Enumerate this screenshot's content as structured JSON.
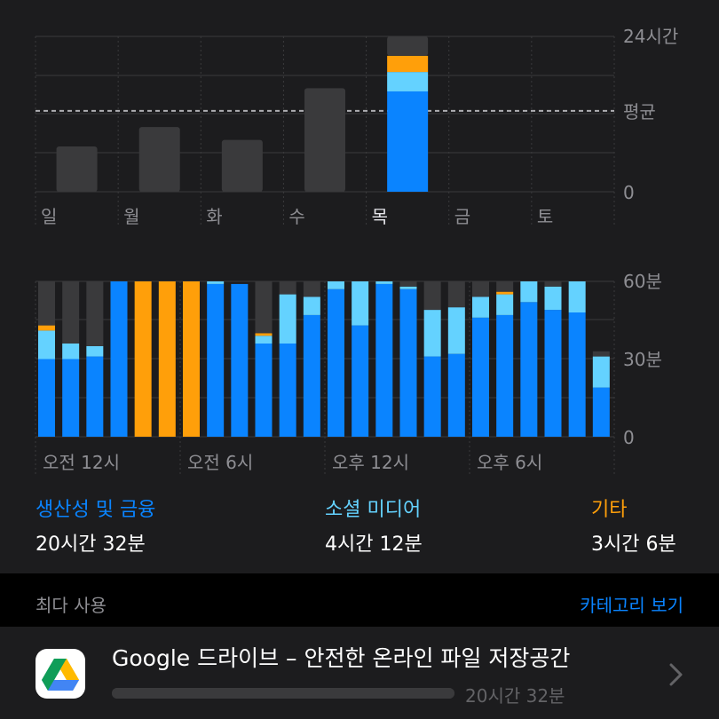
{
  "colors": {
    "productivity": "#0a84ff",
    "social": "#64d2ff",
    "other": "#ff9f0a",
    "uncategorized": "#3a3a3c",
    "link": "#0a84ff"
  },
  "weekly_chart": {
    "y_ticks": [
      "24시간",
      "평균",
      "0"
    ],
    "days": [
      "일",
      "월",
      "화",
      "수",
      "목",
      "금",
      "토"
    ],
    "today_index": 4,
    "max_hours": 24,
    "average_hours": 12.5,
    "totals_hours": [
      7,
      10,
      8,
      16,
      24,
      null,
      null
    ],
    "today_breakdown": {
      "productivity": 15.5,
      "social": 3,
      "other": 2.5,
      "uncategorized": 3
    }
  },
  "hourly_chart": {
    "y_ticks": [
      "60분",
      "30분",
      "0"
    ],
    "x_labels": [
      "오전 12시",
      "오전 6시",
      "오후 12시",
      "오후 6시"
    ],
    "max_minutes": 60,
    "hours": [
      {
        "p": 30,
        "s": 11,
        "o": 2,
        "u": 17
      },
      {
        "p": 30,
        "s": 6,
        "o": 0,
        "u": 24
      },
      {
        "p": 31,
        "s": 4,
        "o": 0,
        "u": 25
      },
      {
        "p": 60,
        "s": 0,
        "o": 0,
        "u": 0
      },
      {
        "p": 0,
        "s": 0,
        "o": 60,
        "u": 0
      },
      {
        "p": 0,
        "s": 0,
        "o": 60,
        "u": 0
      },
      {
        "p": 0,
        "s": 0,
        "o": 60,
        "u": 0
      },
      {
        "p": 59,
        "s": 1,
        "o": 0,
        "u": 0
      },
      {
        "p": 59,
        "s": 0,
        "o": 0,
        "u": 0
      },
      {
        "p": 36,
        "s": 3,
        "o": 1,
        "u": 20
      },
      {
        "p": 36,
        "s": 19,
        "o": 0,
        "u": 5
      },
      {
        "p": 47,
        "s": 7,
        "o": 0,
        "u": 6
      },
      {
        "p": 57,
        "s": 3,
        "o": 0,
        "u": 0
      },
      {
        "p": 43,
        "s": 17,
        "o": 0,
        "u": 0
      },
      {
        "p": 59,
        "s": 1,
        "o": 0,
        "u": 0
      },
      {
        "p": 57,
        "s": 1,
        "o": 0,
        "u": 2
      },
      {
        "p": 31,
        "s": 18,
        "o": 0,
        "u": 11
      },
      {
        "p": 32,
        "s": 18,
        "o": 0,
        "u": 10
      },
      {
        "p": 46,
        "s": 8,
        "o": 0,
        "u": 6
      },
      {
        "p": 47,
        "s": 8,
        "o": 1,
        "u": 4
      },
      {
        "p": 52,
        "s": 8,
        "o": 0,
        "u": 0
      },
      {
        "p": 49,
        "s": 9,
        "o": 0,
        "u": 2
      },
      {
        "p": 48,
        "s": 12,
        "o": 0,
        "u": 0
      },
      {
        "p": 19,
        "s": 12,
        "o": 0,
        "u": 2
      }
    ]
  },
  "categories": [
    {
      "name": "생산성 및 금융",
      "time": "20시간 32분"
    },
    {
      "name": "소셜 미디어",
      "time": "4시간 12분"
    },
    {
      "name": "기타",
      "time": "3시간 6분"
    }
  ],
  "most_used": {
    "title": "최다 사용",
    "link": "카테고리 보기"
  },
  "app": {
    "name": "Google 드라이브 – 안전한 온라인 파일 저장공간",
    "time": "20시간 32분",
    "usage_fraction": 1.0,
    "icon": "google-drive-icon"
  }
}
